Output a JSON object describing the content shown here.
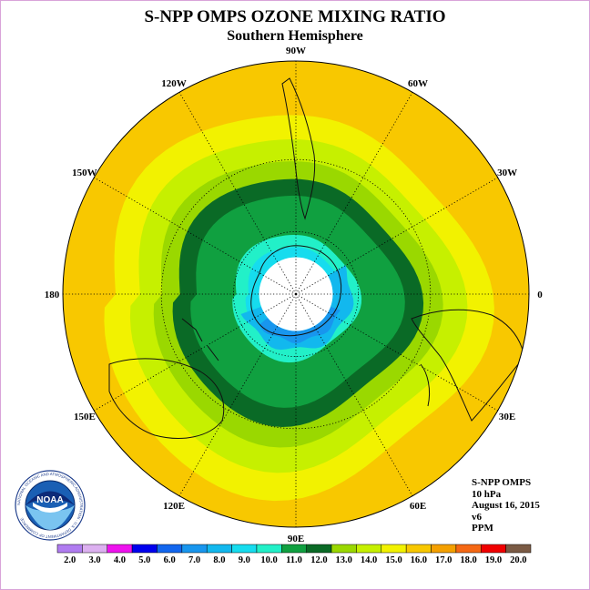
{
  "title": "S-NPP OMPS OZONE MIXING RATIO",
  "subtitle": "Southern Hemisphere",
  "longitude_labels": [
    "90W",
    "60W",
    "30W",
    "0",
    "30E",
    "60E",
    "90E",
    "120E",
    "150E",
    "180",
    "150W",
    "120W"
  ],
  "info": {
    "instrument": "S-NPP OMPS",
    "level": "10 hPa",
    "date": "August 16, 2015",
    "version": "v6",
    "units": "PPM"
  },
  "logo": {
    "name": "NOAA",
    "ring_text": "NATIONAL OCEANIC AND ATMOSPHERIC ADMINISTRATION · U.S. DEPARTMENT OF COMMERCE"
  },
  "chart_data": {
    "type": "heatmap",
    "projection": "south polar stereographic",
    "units": "PPM",
    "colorbar": {
      "levels": [
        "2.0",
        "3.0",
        "4.0",
        "5.0",
        "6.0",
        "7.0",
        "8.0",
        "9.0",
        "10.0",
        "11.0",
        "12.0",
        "13.0",
        "14.0",
        "15.0",
        "16.0",
        "17.0",
        "18.0",
        "19.0",
        "20.0"
      ],
      "colors": [
        "#b07cf0",
        "#dcb0f0",
        "#ee12ee",
        "#0000ee",
        "#1266ee",
        "#1896ee",
        "#12b8ee",
        "#16dcee",
        "#22f0c8",
        "#10a040",
        "#0a6a26",
        "#9ad800",
        "#c6f000",
        "#f2f200",
        "#f8c800",
        "#f4a000",
        "#f56814",
        "#f00000",
        "#7a5a44"
      ]
    },
    "field": {
      "polar_missing_lat_min": -72,
      "bands": [
        {
          "range": "9.0-10.0",
          "lat_edge": -66
        },
        {
          "range": "10.0-11.0",
          "lat_edge": -60
        },
        {
          "range": "11.0-12.0",
          "lat_edge": -42
        },
        {
          "range": "12.0-13.0",
          "lat_edge": -35
        },
        {
          "range": "13.0-14.0",
          "lat_edge": -28
        },
        {
          "range": "14.0-15.0",
          "lat_edge": -20
        },
        {
          "range": "15.0-16.0",
          "lat_edge": -12
        },
        {
          "range": "16.0-17.0",
          "lat_edge": 0
        }
      ],
      "low_region": {
        "range": "7.0-9.0",
        "longitude_sector": "0-150E"
      }
    }
  }
}
